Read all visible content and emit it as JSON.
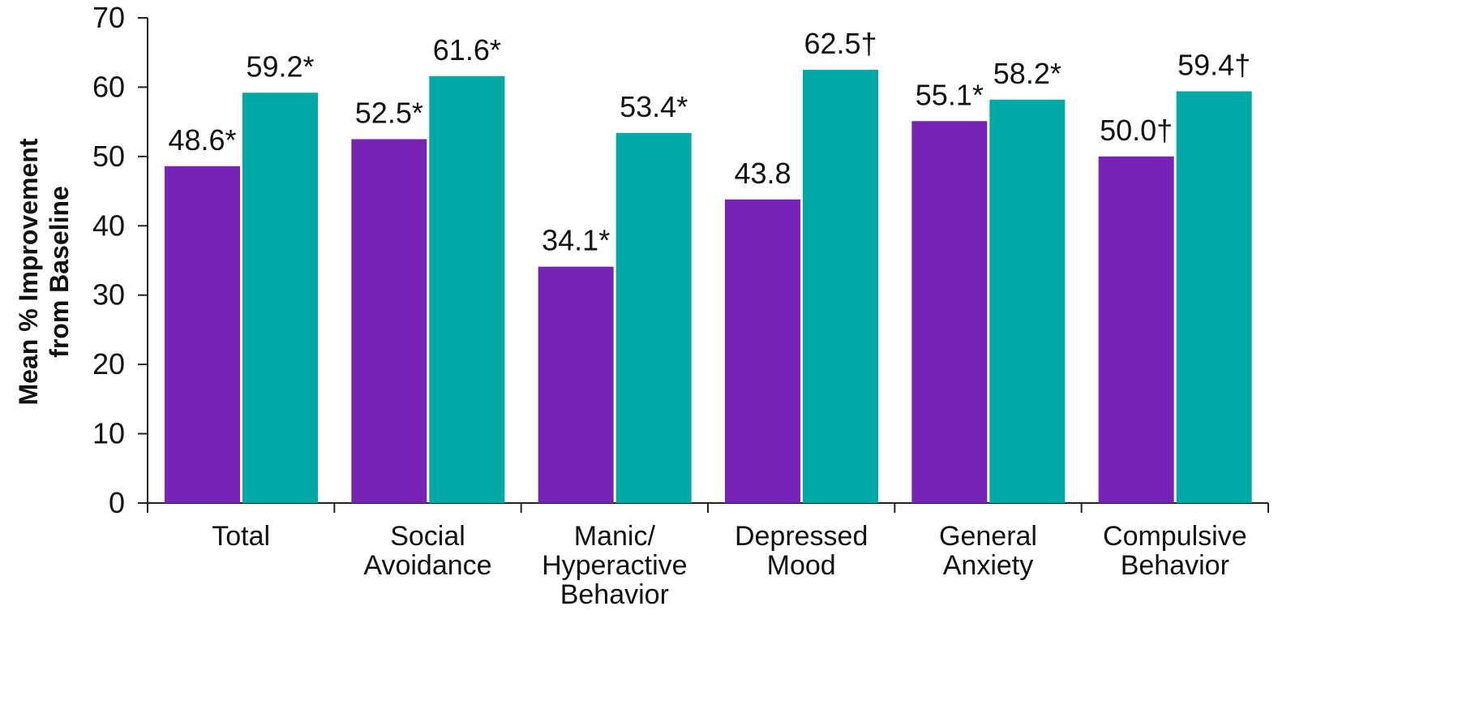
{
  "chart_data": {
    "type": "bar",
    "ylabel_lines": [
      "Mean % Improvement",
      "from Baseline"
    ],
    "ylim": [
      0,
      70
    ],
    "yticks": [
      0,
      10,
      20,
      30,
      40,
      50,
      60,
      70
    ],
    "categories": [
      [
        "Total"
      ],
      [
        "Social",
        "Avoidance"
      ],
      [
        "Manic/",
        "Hyperactive",
        "Behavior"
      ],
      [
        "Depressed",
        "Mood"
      ],
      [
        "General",
        "Anxiety"
      ],
      [
        "Compulsive",
        "Behavior"
      ]
    ],
    "series": [
      {
        "values": [
          48.6,
          52.5,
          34.1,
          43.8,
          55.1,
          50.0
        ],
        "labels": [
          "48.6*",
          "52.5*",
          "34.1*",
          "43.8",
          "55.1*",
          "50.0†"
        ],
        "color": "#7724B6"
      },
      {
        "values": [
          59.2,
          61.6,
          53.4,
          62.5,
          58.2,
          59.4
        ],
        "labels": [
          "59.2*",
          "61.6*",
          "53.4*",
          "62.5†",
          "58.2*",
          "59.4†"
        ],
        "color": "#00A8A6"
      }
    ],
    "grid": false,
    "legend": "none"
  }
}
